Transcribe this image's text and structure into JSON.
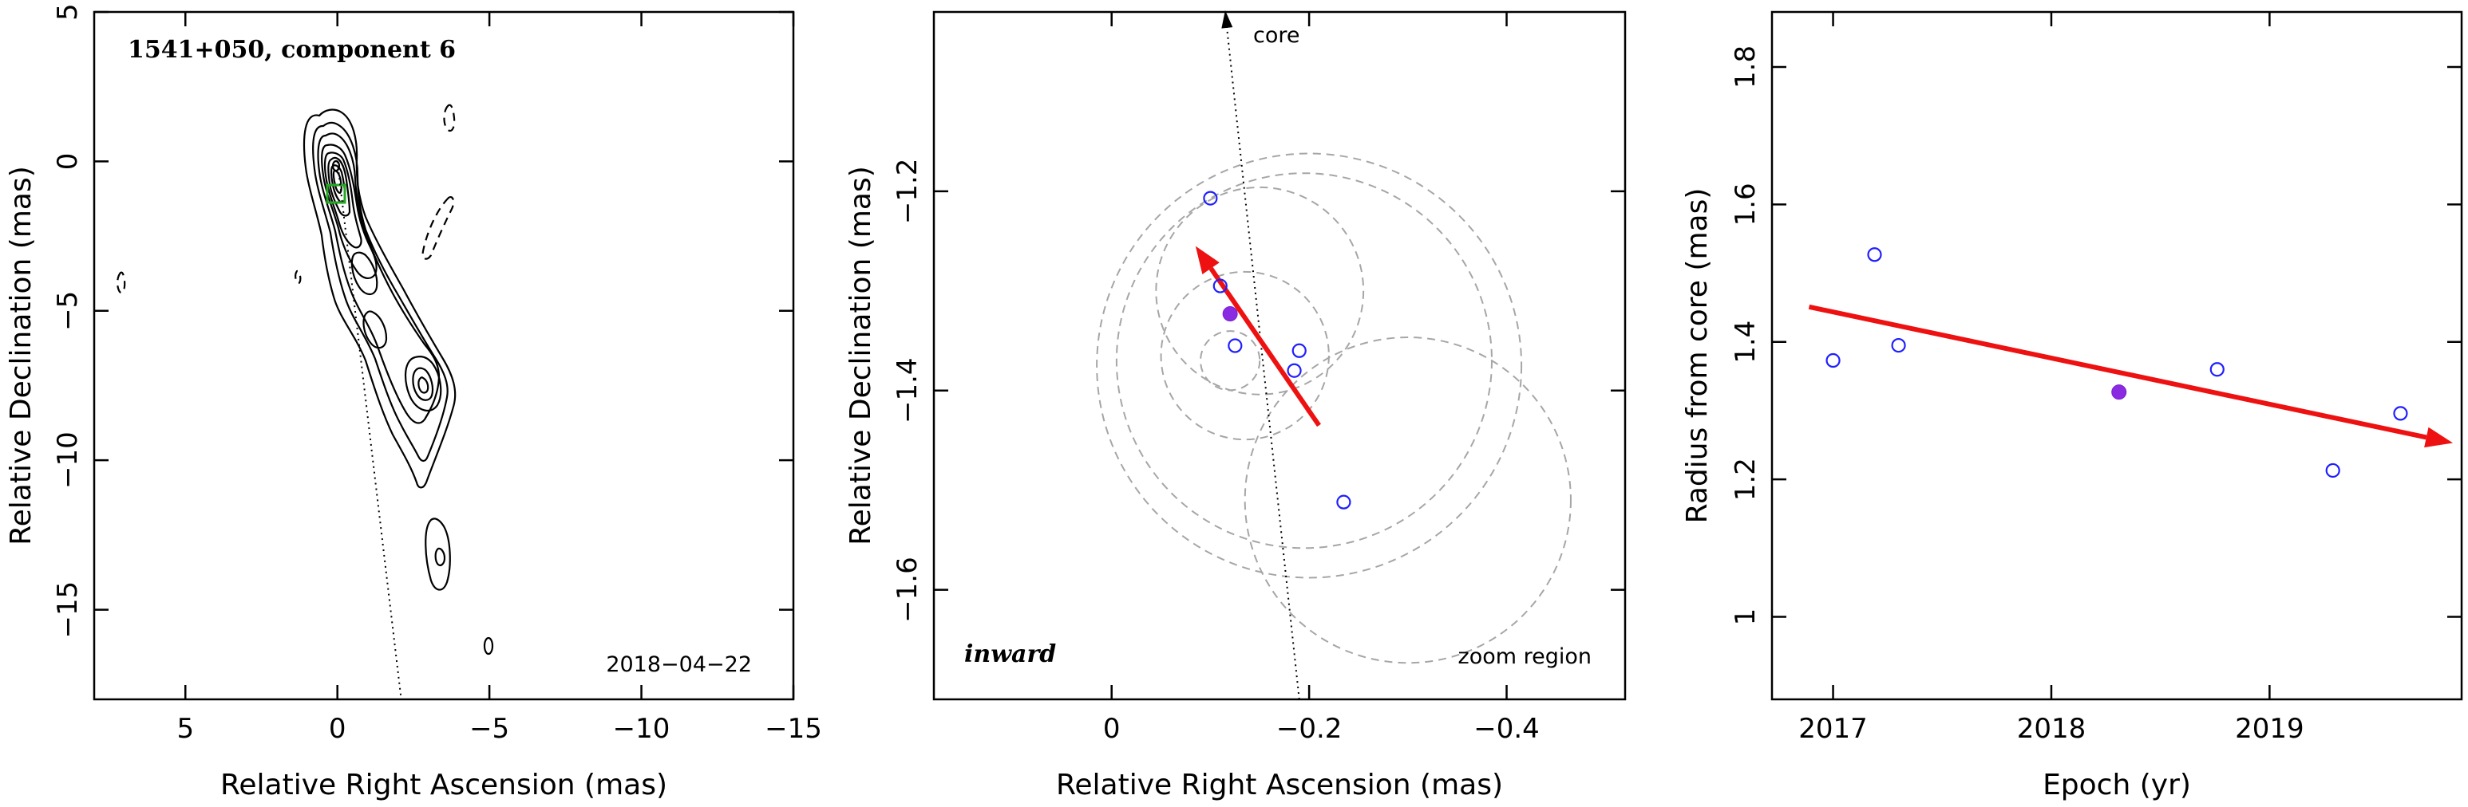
{
  "chart_data": [
    {
      "type": "contour",
      "title": "1541+050, component 6",
      "date_label": "2018−04−22",
      "xlabel": "Relative Right Ascension (mas)",
      "ylabel": "Relative Declination (mas)",
      "xlim": [
        8,
        -15
      ],
      "ylim": [
        -18,
        5
      ],
      "xticks": [
        {
          "value": 5,
          "label": "5"
        },
        {
          "value": 0,
          "label": "0"
        },
        {
          "value": -5,
          "label": "−5"
        },
        {
          "value": -10,
          "label": "−10"
        },
        {
          "value": -15,
          "label": "−15"
        }
      ],
      "yticks": [
        {
          "value": 5,
          "label": "5"
        },
        {
          "value": 0,
          "label": "0"
        },
        {
          "value": -5,
          "label": "−5"
        },
        {
          "value": -10,
          "label": "−10"
        },
        {
          "value": -15,
          "label": "−15"
        }
      ],
      "component_box": {
        "x": -0.15,
        "y": -1.35,
        "color": "#22aa22"
      },
      "core_line": {
        "from": [
          0,
          0
        ],
        "to": [
          -2.1,
          -18
        ]
      }
    },
    {
      "type": "scatter",
      "xlabel": "Relative Right Ascension (mas)",
      "ylabel": "Relative Declination (mas)",
      "xlim": [
        0.18,
        -0.52
      ],
      "ylim": [
        -1.71,
        -1.02
      ],
      "xticks": [
        {
          "value": 0,
          "label": "0"
        },
        {
          "value": -0.2,
          "label": "−0.2"
        },
        {
          "value": -0.4,
          "label": "−0.4"
        }
      ],
      "yticks": [
        {
          "value": -1.2,
          "label": "−1.2"
        },
        {
          "value": -1.4,
          "label": "−1.4"
        },
        {
          "value": -1.6,
          "label": "−1.6"
        }
      ],
      "annotations": {
        "core": "core",
        "direction": "inward",
        "region": "zoom region"
      },
      "points": [
        {
          "x": -0.1,
          "y": -1.207,
          "filled": false
        },
        {
          "x": -0.11,
          "y": -1.295,
          "filled": false
        },
        {
          "x": -0.12,
          "y": -1.323,
          "filled": true
        },
        {
          "x": -0.125,
          "y": -1.355,
          "filled": false
        },
        {
          "x": -0.19,
          "y": -1.36,
          "filled": false
        },
        {
          "x": -0.185,
          "y": -1.38,
          "filled": false
        },
        {
          "x": -0.235,
          "y": -1.512,
          "filled": false
        }
      ],
      "error_circles": [
        {
          "x": -0.135,
          "y": -1.365,
          "r": 0.085
        },
        {
          "x": -0.15,
          "y": -1.3,
          "r": 0.105
        },
        {
          "x": -0.195,
          "y": -1.37,
          "r": 0.19
        },
        {
          "x": -0.2,
          "y": -1.375,
          "r": 0.215
        },
        {
          "x": -0.3,
          "y": -1.51,
          "r": 0.165
        },
        {
          "x": -0.12,
          "y": -1.37,
          "r": 0.03
        }
      ],
      "motion_vector": {
        "from": [
          -0.21,
          -1.435
        ],
        "to": [
          -0.085,
          -1.255
        ]
      },
      "core_direction": {
        "from": [
          -0.19,
          -1.71
        ],
        "to": [
          -0.115,
          -1.02
        ]
      }
    },
    {
      "type": "scatter",
      "xlabel": "Epoch (yr)",
      "ylabel": "Radius from core (mas)",
      "xlim": [
        2016.72,
        2019.88
      ],
      "ylim": [
        0.88,
        1.88
      ],
      "xticks": [
        {
          "value": 2017,
          "label": "2017"
        },
        {
          "value": 2018,
          "label": "2018"
        },
        {
          "value": 2019,
          "label": "2019"
        }
      ],
      "yticks": [
        {
          "value": 1,
          "label": "1"
        },
        {
          "value": 1.2,
          "label": "1.2"
        },
        {
          "value": 1.4,
          "label": "1.4"
        },
        {
          "value": 1.6,
          "label": "1.6"
        },
        {
          "value": 1.8,
          "label": "1.8"
        }
      ],
      "points": [
        {
          "x": 2017.0,
          "y": 1.373,
          "filled": false
        },
        {
          "x": 2017.19,
          "y": 1.527,
          "filled": false
        },
        {
          "x": 2017.3,
          "y": 1.395,
          "filled": false
        },
        {
          "x": 2018.31,
          "y": 1.327,
          "filled": true
        },
        {
          "x": 2018.76,
          "y": 1.36,
          "filled": false
        },
        {
          "x": 2019.29,
          "y": 1.213,
          "filled": false
        },
        {
          "x": 2019.6,
          "y": 1.296,
          "filled": false
        }
      ],
      "fit_line": {
        "from": [
          2016.89,
          1.451
        ],
        "to": [
          2019.84,
          1.253
        ]
      }
    }
  ]
}
